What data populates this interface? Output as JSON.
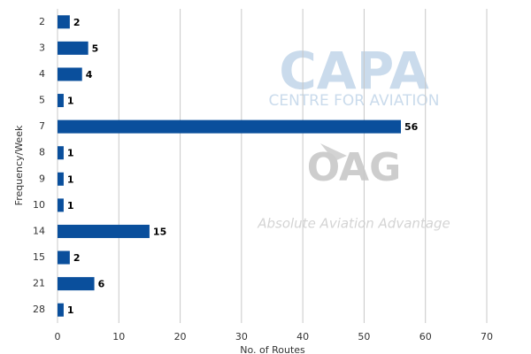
{
  "chart_data": {
    "type": "bar",
    "orientation": "horizontal",
    "categories": [
      "2",
      "3",
      "4",
      "5",
      "7",
      "8",
      "9",
      "10",
      "14",
      "15",
      "21",
      "28"
    ],
    "values": [
      2,
      5,
      4,
      1,
      56,
      1,
      1,
      1,
      15,
      2,
      6,
      1
    ],
    "color": "#0a4f9c",
    "xlim": [
      0,
      70
    ],
    "xticks": [
      0,
      10,
      20,
      30,
      40,
      50,
      60,
      70
    ],
    "grid": true,
    "x_label": "No. of Routes",
    "y_label": "Frequency/Week",
    "watermarks": [
      "CAPA",
      "CENTRE FOR AVIATION",
      "OAG",
      "Absolute Aviation Advantage"
    ]
  }
}
